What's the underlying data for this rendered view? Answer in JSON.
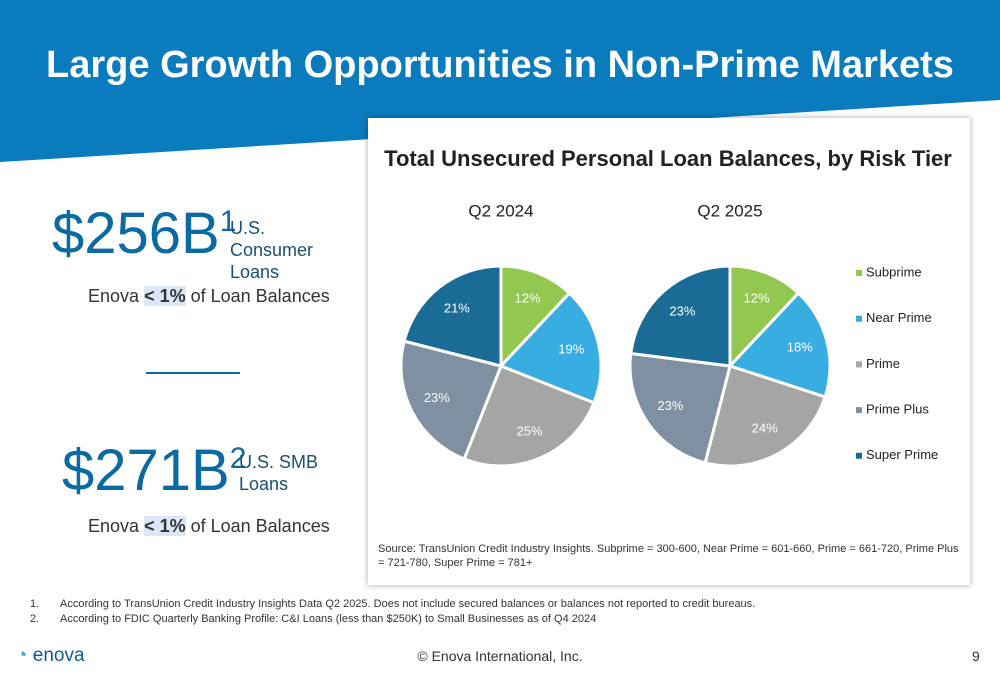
{
  "title": "Large Growth Opportunities in Non-Prime Markets",
  "stats": [
    {
      "amount": "$256B",
      "footnote": "1",
      "label_lines": [
        "U.S. Consumer",
        "Loans"
      ],
      "share_prefix": "Enova",
      "share": "< 1%",
      "share_suffix": "of Loan Balances"
    },
    {
      "amount": "$271B",
      "footnote": "2",
      "label_lines": [
        "U.S. SMB",
        "Loans"
      ],
      "share_prefix": "Enova",
      "share": "< 1%",
      "share_suffix": "of Loan Balances"
    }
  ],
  "chart_data": {
    "type": "pie",
    "title": "Total Unsecured Personal Loan Balances, by Risk Tier",
    "categories": [
      "Subprime",
      "Near Prime",
      "Prime",
      "Prime Plus",
      "Super Prime"
    ],
    "colors": [
      "#92c84f",
      "#38ade2",
      "#a5a5a5",
      "#8090a3",
      "#1a6b96"
    ],
    "series": [
      {
        "name": "Q2 2024",
        "values": [
          12,
          19,
          25,
          23,
          21
        ],
        "value_labels": [
          "12%",
          "19%",
          "25%",
          "23%",
          "21%"
        ]
      },
      {
        "name": "Q2 2025",
        "values": [
          12,
          18,
          24,
          23,
          23
        ],
        "value_labels": [
          "12%",
          "18%",
          "24%",
          "23%",
          "23%"
        ]
      }
    ],
    "source": "Source: TransUnion Credit Industry Insights. Subprime = 300-600, Near Prime = 601-660, Prime = 661-720, Prime Plus = 721-780, Super Prime = 781+"
  },
  "footnotes": [
    {
      "number": "1.",
      "text": "According to TransUnion Credit Industry Insights Data Q2 2025. Does not include secured balances or balances not reported to credit bureaus."
    },
    {
      "number": "2.",
      "text": "According to FDIC Quarterly Banking Profile: C&I Loans (less than $250K) to Small Businesses as of Q4 2024"
    }
  ],
  "footer": {
    "logo": "enova",
    "copyright": "© Enova International, Inc.",
    "page": "9"
  }
}
